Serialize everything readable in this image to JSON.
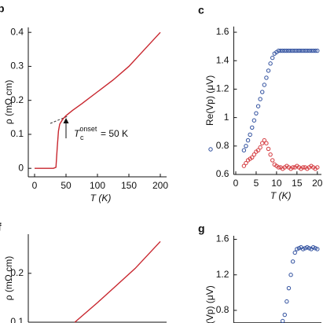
{
  "chart_data": [
    {
      "type": "line",
      "label": "b",
      "xlabel": "T (K)",
      "ylabel": "ρ (mΩ cm)",
      "color": "#c8262e",
      "xlim": [
        -10,
        210
      ],
      "ylim": [
        -0.025,
        0.415
      ],
      "xticks": [
        0,
        50,
        100,
        150,
        200
      ],
      "yticks": [
        0,
        0.1,
        0.2,
        0.3,
        0.4
      ],
      "x": [
        0,
        10,
        20,
        30,
        34,
        36,
        38,
        40,
        45,
        50,
        60,
        75,
        100,
        125,
        150,
        175,
        200
      ],
      "values": [
        0,
        0,
        0,
        0,
        0.003,
        0.06,
        0.11,
        0.13,
        0.145,
        0.155,
        0.17,
        0.19,
        0.225,
        0.26,
        0.3,
        0.35,
        0.4
      ],
      "annotation": {
        "symbol": "T",
        "subscript": "c",
        "superscript": "onset",
        "text": "= 50 K"
      }
    },
    {
      "type": "scatter",
      "label": "c",
      "xlabel": "T (K)",
      "ylabel": "Re(Vp) (μV)",
      "xlim": [
        -0.5,
        21
      ],
      "ylim": [
        0.6,
        1.64
      ],
      "xticks": [
        0,
        5,
        10,
        15,
        20
      ],
      "yticks": [
        0.6,
        0.8,
        1.0,
        1.2,
        1.4,
        1.6
      ],
      "x": [
        2,
        2.5,
        3,
        3.5,
        4,
        4.5,
        5,
        5.5,
        6,
        6.5,
        7,
        7.5,
        8,
        8.5,
        9,
        9.5,
        10,
        10.5,
        11,
        11.5,
        12,
        12.5,
        13,
        13.5,
        14,
        14.5,
        15,
        15.5,
        16,
        16.5,
        17,
        17.5,
        18,
        18.5,
        19,
        19.5,
        20
      ],
      "series": [
        {
          "color": "#2f4f9e",
          "values": [
            0.77,
            0.8,
            0.84,
            0.88,
            0.93,
            0.98,
            1.03,
            1.08,
            1.13,
            1.18,
            1.23,
            1.28,
            1.33,
            1.38,
            1.42,
            1.45,
            1.46,
            1.47,
            1.47,
            1.47,
            1.47,
            1.47,
            1.47,
            1.47,
            1.47,
            1.47,
            1.47,
            1.47,
            1.47,
            1.47,
            1.47,
            1.47,
            1.47,
            1.47,
            1.47,
            1.47,
            1.47
          ]
        },
        {
          "color": "#d43a3f",
          "values": [
            0.66,
            0.68,
            0.7,
            0.71,
            0.72,
            0.74,
            0.76,
            0.77,
            0.79,
            0.82,
            0.84,
            0.82,
            0.78,
            0.74,
            0.7,
            0.67,
            0.66,
            0.65,
            0.65,
            0.64,
            0.65,
            0.66,
            0.65,
            0.64,
            0.65,
            0.65,
            0.66,
            0.65,
            0.64,
            0.65,
            0.65,
            0.64,
            0.65,
            0.66,
            0.65,
            0.64,
            0.65
          ]
        }
      ]
    },
    {
      "type": "line",
      "label": "f",
      "ylabel": "ρ (mΩ cm)",
      "color": "#c8262e",
      "xlim": [
        -10,
        210
      ],
      "ylim": [
        0.1,
        0.28
      ],
      "yticks": [
        0.1,
        0.2
      ],
      "x": [
        64,
        100,
        130,
        160,
        200
      ],
      "values": [
        0.1,
        0.14,
        0.175,
        0.21,
        0.265
      ]
    },
    {
      "type": "scatter",
      "label": "g",
      "ylabel": "Re(Vp) (μV)",
      "xlim": [
        -0.5,
        21
      ],
      "ylim": [
        0.66,
        1.64
      ],
      "yticks": [
        0.8,
        1.2,
        1.6
      ],
      "x": [
        11.5,
        12,
        12.5,
        13,
        13.5,
        14,
        14.5,
        15,
        15.5,
        16,
        16.5,
        17,
        17.5,
        18,
        18.5,
        19,
        19.5,
        20
      ],
      "series": [
        {
          "color": "#2f4f9e",
          "values": [
            0.68,
            0.75,
            0.9,
            1.05,
            1.2,
            1.35,
            1.45,
            1.49,
            1.5,
            1.51,
            1.49,
            1.5,
            1.51,
            1.5,
            1.49,
            1.51,
            1.5,
            1.49
          ]
        }
      ]
    }
  ]
}
